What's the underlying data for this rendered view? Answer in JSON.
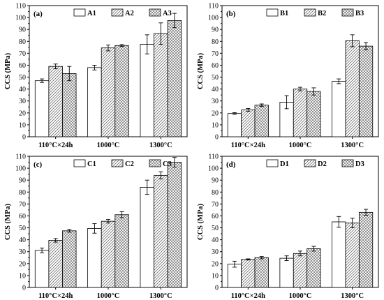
{
  "chart_data": [
    {
      "type": "bar",
      "panel_label": "(a)",
      "ylabel": "CCS (MPa)",
      "ylim": [
        0,
        110
      ],
      "yticks": [
        0,
        10,
        20,
        30,
        40,
        50,
        60,
        70,
        80,
        90,
        100,
        110
      ],
      "categories": [
        "110°C×24h",
        "1000°C",
        "1300°C"
      ],
      "legend_position": "top-right",
      "series": [
        {
          "name": "A1",
          "pattern": "open",
          "values": [
            47,
            58,
            77.5
          ],
          "errors": [
            1.5,
            2,
            8
          ]
        },
        {
          "name": "A2",
          "pattern": "diagonal",
          "values": [
            59,
            74.5,
            86.5
          ],
          "errors": [
            2,
            2.5,
            9
          ]
        },
        {
          "name": "A3",
          "pattern": "crosshatch",
          "values": [
            53,
            76.5,
            97.5
          ],
          "errors": [
            6,
            0.8,
            6
          ]
        }
      ]
    },
    {
      "type": "bar",
      "panel_label": "(b)",
      "ylabel": "CCS (MPa)",
      "ylim": [
        0,
        110
      ],
      "yticks": [
        0,
        10,
        20,
        30,
        40,
        50,
        60,
        70,
        80,
        90,
        100,
        110
      ],
      "categories": [
        "110°C×24h",
        "1000°C",
        "1300°C"
      ],
      "legend_position": "top-right",
      "series": [
        {
          "name": "B1",
          "pattern": "open",
          "values": [
            19.5,
            29,
            46.5
          ],
          "errors": [
            0.7,
            5.5,
            2
          ]
        },
        {
          "name": "B2",
          "pattern": "diagonal",
          "values": [
            22.5,
            40,
            80.5
          ],
          "errors": [
            1.2,
            1.5,
            5
          ]
        },
        {
          "name": "B3",
          "pattern": "crosshatch",
          "values": [
            26.5,
            38,
            76
          ],
          "errors": [
            1,
            3,
            3
          ]
        }
      ]
    },
    {
      "type": "bar",
      "panel_label": "(c)",
      "ylabel": "CCS (MPa)",
      "ylim": [
        0,
        110
      ],
      "yticks": [
        0,
        10,
        20,
        30,
        40,
        50,
        60,
        70,
        80,
        90,
        100,
        110
      ],
      "categories": [
        "110°C×24h",
        "1000°C",
        "1300°C"
      ],
      "legend_position": "top-right",
      "series": [
        {
          "name": "C1",
          "pattern": "open",
          "values": [
            31,
            49.5,
            84
          ],
          "errors": [
            2,
            4,
            6
          ]
        },
        {
          "name": "C2",
          "pattern": "diagonal",
          "values": [
            39.5,
            55.5,
            94
          ],
          "errors": [
            1.5,
            1.5,
            3
          ]
        },
        {
          "name": "C3",
          "pattern": "crosshatch",
          "values": [
            47.5,
            61,
            105
          ],
          "errors": [
            1.2,
            2.5,
            4
          ]
        }
      ]
    },
    {
      "type": "bar",
      "panel_label": "(d)",
      "ylabel": "CCS (MPa)",
      "ylim": [
        0,
        110
      ],
      "yticks": [
        0,
        10,
        20,
        30,
        40,
        50,
        60,
        70,
        80,
        90,
        100,
        110
      ],
      "categories": [
        "110°C×24h",
        "1000°C",
        "1300°C"
      ],
      "legend_position": "top-right",
      "series": [
        {
          "name": "D1",
          "pattern": "open",
          "values": [
            19.5,
            24.5,
            55
          ],
          "errors": [
            2.5,
            2,
            4.5
          ]
        },
        {
          "name": "D2",
          "pattern": "diagonal",
          "values": [
            23.5,
            28.5,
            54
          ],
          "errors": [
            0.5,
            2,
            4
          ]
        },
        {
          "name": "D3",
          "pattern": "crosshatch",
          "values": [
            25,
            32.5,
            63
          ],
          "errors": [
            1,
            2,
            2.5
          ]
        }
      ]
    }
  ]
}
